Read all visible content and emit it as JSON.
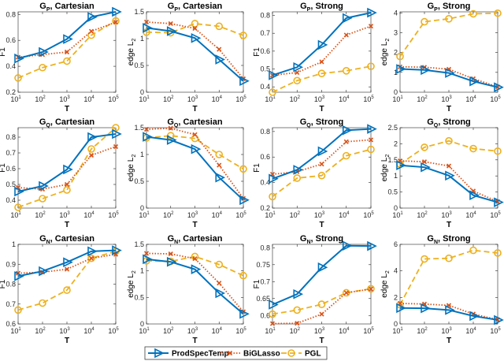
{
  "chart_data": [
    {
      "type": "line",
      "title": "G_P, Cartesian",
      "title_main": "G",
      "title_sub": "P",
      "title_rest": ", Cartesian",
      "xlabel": "T",
      "ylabel": "F1",
      "ylim": [
        0.2,
        0.82
      ],
      "yticks": [
        0.2,
        0.4,
        0.6,
        0.8
      ],
      "ytick_labels": [
        "0.2",
        "0.4",
        "0.6",
        "0.8"
      ],
      "series": [
        {
          "name": "ProdSpecTemp",
          "values": [
            0.46,
            0.51,
            0.61,
            0.78,
            0.82
          ]
        },
        {
          "name": "BiGLasso",
          "values": [
            0.47,
            0.49,
            0.51,
            0.67,
            0.74
          ]
        },
        {
          "name": "PGL",
          "values": [
            0.31,
            0.39,
            0.44,
            0.64,
            0.75
          ]
        }
      ]
    },
    {
      "type": "line",
      "title": "G_P, Cartesian",
      "title_main": "G",
      "title_sub": "P",
      "title_rest": ", Cartesian",
      "xlabel": "T",
      "ylabel": "edge L_2",
      "ylim": [
        0,
        1.5
      ],
      "yticks": [
        0,
        0.5,
        1,
        1.5
      ],
      "ytick_labels": [
        "0",
        "0.5",
        "1",
        "1.5"
      ],
      "series": [
        {
          "name": "ProdSpecTemp",
          "values": [
            1.2,
            1.14,
            1.01,
            0.61,
            0.21
          ]
        },
        {
          "name": "BiGLasso",
          "values": [
            1.31,
            1.28,
            1.19,
            0.8,
            0.25
          ]
        },
        {
          "name": "PGL",
          "values": [
            1.12,
            1.11,
            1.28,
            1.23,
            1.06
          ]
        }
      ]
    },
    {
      "type": "line",
      "title": "G_P, Strong",
      "title_main": "G",
      "title_sub": "P",
      "title_rest": ", Strong",
      "xlabel": "T",
      "ylabel": "F1",
      "ylim": [
        0.37,
        0.82
      ],
      "yticks": [
        0.4,
        0.5,
        0.6,
        0.7,
        0.8
      ],
      "ytick_labels": [
        "0.4",
        "0.5",
        "0.6",
        "0.7",
        "0.8"
      ],
      "series": [
        {
          "name": "ProdSpecTemp",
          "values": [
            0.465,
            0.51,
            0.635,
            0.785,
            0.815
          ]
        },
        {
          "name": "BiGLasso",
          "values": [
            0.465,
            0.48,
            0.54,
            0.69,
            0.74
          ]
        },
        {
          "name": "PGL",
          "values": [
            0.37,
            0.435,
            0.475,
            0.49,
            0.515
          ]
        }
      ]
    },
    {
      "type": "line",
      "title": "G_P, Strong",
      "title_main": "G",
      "title_sub": "P",
      "title_rest": ", Strong",
      "xlabel": "T",
      "ylabel": "edge L_2",
      "ylim": [
        0,
        4.05
      ],
      "yticks": [
        0,
        1,
        2,
        3,
        4
      ],
      "ytick_labels": [
        "0",
        "1",
        "2",
        "3",
        "4"
      ],
      "series": [
        {
          "name": "ProdSpecTemp",
          "values": [
            1.17,
            1.12,
            0.97,
            0.55,
            0.25
          ]
        },
        {
          "name": "BiGLasso",
          "values": [
            1.28,
            1.26,
            1.16,
            0.68,
            0.27
          ]
        },
        {
          "name": "PGL",
          "values": [
            1.8,
            3.55,
            3.7,
            3.95,
            3.98
          ]
        }
      ]
    },
    {
      "type": "line",
      "title": "G_Q, Cartesian",
      "title_main": "G",
      "title_sub": "Q",
      "title_rest": ", Cartesian",
      "xlabel": "T",
      "ylabel": "F1",
      "ylim": [
        0.35,
        0.86
      ],
      "yticks": [
        0.4,
        0.5,
        0.6,
        0.7,
        0.8
      ],
      "ytick_labels": [
        "0.4",
        "0.5",
        "0.6",
        "0.7",
        "0.8"
      ],
      "series": [
        {
          "name": "ProdSpecTemp",
          "values": [
            0.455,
            0.49,
            0.595,
            0.8,
            0.82
          ]
        },
        {
          "name": "BiGLasso",
          "values": [
            0.48,
            0.47,
            0.5,
            0.685,
            0.74
          ]
        },
        {
          "name": "PGL",
          "values": [
            0.355,
            0.41,
            0.465,
            0.725,
            0.86
          ]
        }
      ]
    },
    {
      "type": "line",
      "title": "G_Q, Cartesian",
      "title_main": "G",
      "title_sub": "Q",
      "title_rest": ", Cartesian",
      "xlabel": "T",
      "ylabel": "edge L_2",
      "ylim": [
        0,
        1.5
      ],
      "yticks": [
        0,
        0.5,
        1,
        1.5
      ],
      "ytick_labels": [
        "0",
        "0.5",
        "1",
        "1.5"
      ],
      "series": [
        {
          "name": "ProdSpecTemp",
          "values": [
            1.33,
            1.27,
            1.1,
            0.57,
            0.15
          ]
        },
        {
          "name": "BiGLasso",
          "values": [
            1.47,
            1.49,
            1.37,
            0.8,
            0.18
          ]
        },
        {
          "name": "PGL",
          "values": [
            1.31,
            1.35,
            1.3,
            1.0,
            0.73
          ]
        }
      ]
    },
    {
      "type": "line",
      "title": "G_Q, Strong",
      "title_main": "G",
      "title_sub": "Q",
      "title_rest": ", Strong",
      "xlabel": "T",
      "ylabel": "F1",
      "ylim": [
        0.2,
        0.83
      ],
      "yticks": [
        0.2,
        0.4,
        0.6,
        0.8
      ],
      "ytick_labels": [
        "0.2",
        "0.4",
        "0.6",
        "0.8"
      ],
      "series": [
        {
          "name": "ProdSpecTemp",
          "values": [
            0.43,
            0.5,
            0.645,
            0.81,
            0.82
          ]
        },
        {
          "name": "BiGLasso",
          "values": [
            0.465,
            0.485,
            0.545,
            0.72,
            0.735
          ]
        },
        {
          "name": "PGL",
          "values": [
            0.29,
            0.435,
            0.455,
            0.61,
            0.66
          ]
        }
      ]
    },
    {
      "type": "line",
      "title": "G_Q, Strong",
      "title_main": "G",
      "title_sub": "Q",
      "title_rest": ", Strong",
      "xlabel": "T",
      "ylabel": "edge L_2",
      "ylim": [
        0,
        2.5
      ],
      "yticks": [
        0,
        0.5,
        1,
        1.5,
        2,
        2.5
      ],
      "ytick_labels": [
        "0",
        "0.5",
        "1",
        "1.5",
        "2",
        "2.5"
      ],
      "series": [
        {
          "name": "ProdSpecTemp",
          "values": [
            1.33,
            1.27,
            1.01,
            0.4,
            0.18
          ]
        },
        {
          "name": "BiGLasso",
          "values": [
            1.47,
            1.44,
            1.31,
            0.53,
            0.2
          ]
        },
        {
          "name": "PGL",
          "values": [
            1.37,
            1.89,
            2.09,
            1.85,
            1.77
          ]
        }
      ]
    },
    {
      "type": "line",
      "title": "G_N, Cartesian",
      "title_main": "G",
      "title_sub": "N",
      "title_rest": ", Cartesian",
      "xlabel": "T",
      "ylabel": "F1",
      "ylim": [
        0.6,
        1.0
      ],
      "yticks": [
        0.6,
        0.7,
        0.8,
        0.9,
        1.0
      ],
      "ytick_labels": [
        "0.6",
        "0.7",
        "0.8",
        "0.9",
        "1"
      ],
      "series": [
        {
          "name": "ProdSpecTemp",
          "values": [
            0.84,
            0.865,
            0.91,
            0.965,
            0.97
          ]
        },
        {
          "name": "BiGLasso",
          "values": [
            0.855,
            0.86,
            0.875,
            0.93,
            0.95
          ]
        },
        {
          "name": "PGL",
          "values": [
            0.67,
            0.705,
            0.77,
            0.93,
            0.965
          ]
        }
      ]
    },
    {
      "type": "line",
      "title": "G_N, Cartesian",
      "title_main": "G",
      "title_sub": "N",
      "title_rest": ", Cartesian",
      "xlabel": "T",
      "ylabel": "edge L_2",
      "ylim": [
        0,
        1.5
      ],
      "yticks": [
        0,
        0.5,
        1,
        1.5
      ],
      "ytick_labels": [
        "0",
        "0.5",
        "1",
        "1.5"
      ],
      "series": [
        {
          "name": "ProdSpecTemp",
          "values": [
            1.22,
            1.17,
            1.03,
            0.58,
            0.19
          ]
        },
        {
          "name": "BiGLasso",
          "values": [
            1.33,
            1.32,
            1.23,
            0.77,
            0.23
          ]
        },
        {
          "name": "PGL",
          "values": [
            1.19,
            1.18,
            1.27,
            1.12,
            0.91
          ]
        }
      ]
    },
    {
      "type": "line",
      "title": "G_N, Strong",
      "title_main": "G",
      "title_sub": "N",
      "title_rest": ", Strong",
      "xlabel": "T",
      "ylabel": "F1",
      "ylim": [
        0.575,
        0.81
      ],
      "yticks": [
        0.6,
        0.65,
        0.7,
        0.75,
        0.8
      ],
      "ytick_labels": [
        "0.6",
        "0.65",
        "0.7",
        "0.75",
        "0.8"
      ],
      "series": [
        {
          "name": "ProdSpecTemp",
          "values": [
            0.632,
            0.663,
            0.742,
            0.806,
            0.805
          ]
        },
        {
          "name": "BiGLasso",
          "values": [
            0.576,
            0.577,
            0.604,
            0.667,
            0.678
          ]
        },
        {
          "name": "PGL",
          "values": [
            0.604,
            0.616,
            0.633,
            0.667,
            0.679
          ]
        }
      ]
    },
    {
      "type": "line",
      "title": "G_N, Strong",
      "title_main": "G",
      "title_sub": "N",
      "title_rest": ", Strong",
      "xlabel": "T",
      "ylabel": "edge L_2",
      "ylim": [
        0,
        6
      ],
      "yticks": [
        0,
        2,
        4,
        6
      ],
      "ytick_labels": [
        "0",
        "2",
        "4",
        "6"
      ],
      "series": [
        {
          "name": "ProdSpecTemp",
          "values": [
            1.2,
            1.18,
            1.05,
            0.6,
            0.3
          ]
        },
        {
          "name": "BiGLasso",
          "values": [
            1.55,
            1.5,
            1.4,
            0.75,
            0.32
          ]
        },
        {
          "name": "PGL",
          "values": [
            1.45,
            4.9,
            4.95,
            5.55,
            5.35
          ]
        }
      ]
    }
  ],
  "x_ticks": {
    "base": "10",
    "exponents": [
      "1",
      "2",
      "3",
      "4",
      "5"
    ]
  },
  "legend": {
    "placement": "bottom-center",
    "entries": [
      {
        "name": "ProdSpecTemp",
        "color": "#0072BD",
        "style": "solid",
        "marker": "triangle-right"
      },
      {
        "name": "BiGLasso",
        "color": "#D95319",
        "style": "dotted",
        "marker": "x"
      },
      {
        "name": "PGL",
        "color": "#EDB120",
        "style": "dashed",
        "marker": "circle"
      }
    ]
  }
}
